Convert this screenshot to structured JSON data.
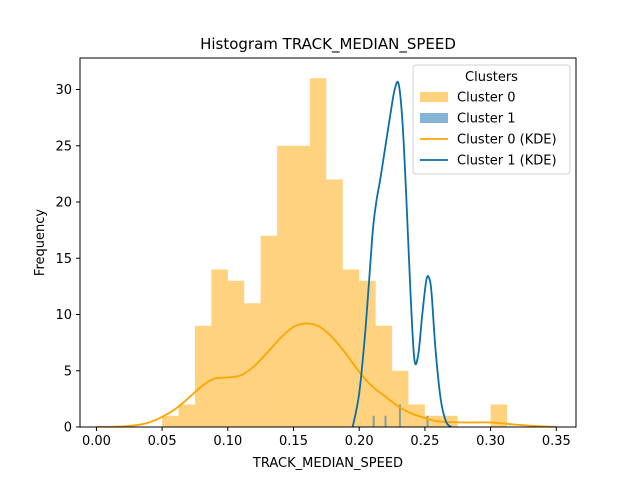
{
  "chart_data": {
    "type": "histogram",
    "title": "Histogram TRACK_MEDIAN_SPEED",
    "xlabel": "TRACK_MEDIAN_SPEED",
    "ylabel": "Frequency",
    "xlim": [
      -0.0125,
      0.365
    ],
    "ylim": [
      0,
      32.8
    ],
    "xticks": [
      0.0,
      0.05,
      0.1,
      0.15,
      0.2,
      0.25,
      0.3,
      0.35
    ],
    "xtick_labels": [
      "0.00",
      "0.05",
      "0.10",
      "0.15",
      "0.20",
      "0.25",
      "0.30",
      "0.35"
    ],
    "yticks": [
      0,
      5,
      10,
      15,
      20,
      25,
      30
    ],
    "ytick_labels": [
      "0",
      "5",
      "10",
      "15",
      "20",
      "25",
      "30"
    ],
    "grid": false,
    "legend": {
      "title": "Clusters",
      "position": "top-right",
      "entries": [
        "Cluster 0",
        "Cluster 1",
        "Cluster 0 (KDE)",
        "Cluster 1 (KDE)"
      ]
    },
    "series": [
      {
        "name": "Cluster 0",
        "kind": "hist",
        "color": "#ffa500",
        "bin_edges": [
          0.05,
          0.0625,
          0.075,
          0.0875,
          0.1,
          0.1125,
          0.125,
          0.1375,
          0.15,
          0.1625,
          0.175,
          0.1875,
          0.2,
          0.2125,
          0.225,
          0.2375,
          0.25,
          0.2625,
          0.275,
          0.2875,
          0.3,
          0.3125
        ],
        "counts": [
          1,
          2,
          9,
          14,
          13,
          11,
          17,
          25,
          25,
          31,
          22,
          14,
          13,
          9,
          5,
          2,
          1,
          1,
          0,
          0,
          2
        ]
      },
      {
        "name": "Cluster 1",
        "kind": "hist",
        "color": "#1f77b4",
        "bars": [
          {
            "x": 0.211,
            "count": 1
          },
          {
            "x": 0.22,
            "count": 1
          },
          {
            "x": 0.231,
            "count": 2
          },
          {
            "x": 0.252,
            "count": 1
          }
        ]
      },
      {
        "name": "Cluster 0 (KDE)",
        "kind": "kde",
        "color": "#ffa500",
        "x": [
          0.0,
          0.02,
          0.04,
          0.06,
          0.08,
          0.09,
          0.1,
          0.11,
          0.12,
          0.13,
          0.14,
          0.15,
          0.16,
          0.17,
          0.18,
          0.19,
          0.2,
          0.21,
          0.22,
          0.23,
          0.24,
          0.25,
          0.26,
          0.28,
          0.3,
          0.32,
          0.34,
          0.35
        ],
        "y": [
          0.0,
          0.05,
          0.4,
          1.6,
          3.6,
          4.3,
          4.4,
          4.6,
          5.4,
          6.6,
          7.9,
          8.9,
          9.2,
          8.9,
          7.9,
          6.5,
          4.9,
          3.6,
          2.7,
          1.8,
          1.2,
          0.8,
          0.5,
          0.4,
          0.4,
          0.2,
          0.05,
          0.0
        ]
      },
      {
        "name": "Cluster 1 (KDE)",
        "kind": "kde",
        "color": "#1f77b4",
        "x": [
          0.195,
          0.2,
          0.205,
          0.21,
          0.213,
          0.216,
          0.22,
          0.224,
          0.227,
          0.23,
          0.233,
          0.236,
          0.239,
          0.242,
          0.245,
          0.248,
          0.251,
          0.253,
          0.255,
          0.258,
          0.262,
          0.266,
          0.27
        ],
        "y": [
          0.0,
          3.0,
          9.0,
          17.0,
          20.0,
          22.0,
          25.0,
          28.0,
          30.0,
          30.5,
          27.0,
          20.0,
          12.0,
          6.0,
          6.5,
          10.0,
          13.0,
          13.3,
          12.0,
          7.0,
          2.5,
          0.5,
          0.0
        ]
      }
    ]
  }
}
